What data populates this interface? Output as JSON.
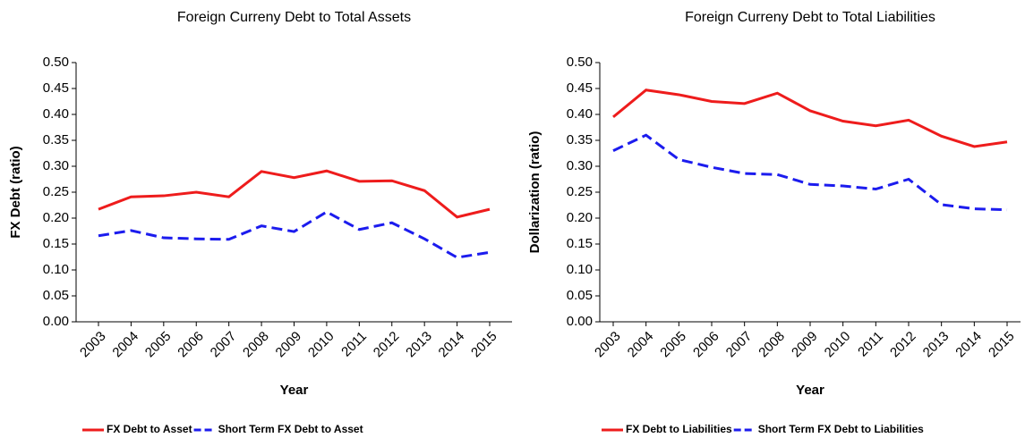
{
  "chart_data": [
    {
      "type": "line",
      "title": "Foreign Curreny Debt to Total Assets",
      "xlabel": "Year",
      "ylabel": "FX Debt (ratio)",
      "categories": [
        "2003",
        "2004",
        "2005",
        "2006",
        "2007",
        "2008",
        "2009",
        "2010",
        "2011",
        "2012",
        "2013",
        "2014",
        "2015"
      ],
      "series": [
        {
          "name": "FX Debt to Asset",
          "color": "#ee1c1c",
          "dash": false,
          "values": [
            0.217,
            0.241,
            0.243,
            0.25,
            0.241,
            0.29,
            0.278,
            0.291,
            0.271,
            0.272,
            0.253,
            0.202,
            0.217
          ]
        },
        {
          "name": "Short Term FX Debt to Asset",
          "color": "#1c1cee",
          "dash": true,
          "values": [
            0.166,
            0.176,
            0.162,
            0.16,
            0.159,
            0.185,
            0.174,
            0.212,
            0.178,
            0.191,
            0.16,
            0.124,
            0.134
          ]
        }
      ],
      "ylim": [
        0,
        0.5
      ],
      "yticks": [
        {
          "value": 0,
          "label": "0.00"
        },
        {
          "value": 0.05,
          "label": "0.05"
        },
        {
          "value": 0.1,
          "label": "0.10"
        },
        {
          "value": 0.15,
          "label": "0.15"
        },
        {
          "value": 0.2,
          "label": "0.20"
        },
        {
          "value": 0.25,
          "label": "0.25"
        },
        {
          "value": 0.3,
          "label": "0.30"
        },
        {
          "value": 0.35,
          "label": "0.35"
        },
        {
          "value": 0.4,
          "label": "0.40"
        },
        {
          "value": 0.45,
          "label": "0.45"
        },
        {
          "value": 0.5,
          "label": "0.50"
        }
      ],
      "grid": false,
      "legend": "bottom"
    },
    {
      "type": "line",
      "title": "Foreign Curreny Debt to Total Liabilities",
      "xlabel": "Year",
      "ylabel": "Dollarization (ratio)",
      "categories": [
        "2003",
        "2004",
        "2005",
        "2006",
        "2007",
        "2008",
        "2009",
        "2010",
        "2011",
        "2012",
        "2013",
        "2014",
        "2015"
      ],
      "series": [
        {
          "name": "FX Debt to Liabilities",
          "color": "#ee1c1c",
          "dash": false,
          "values": [
            0.395,
            0.447,
            0.438,
            0.425,
            0.421,
            0.441,
            0.407,
            0.387,
            0.378,
            0.389,
            0.358,
            0.338,
            0.347
          ]
        },
        {
          "name": "Short Term FX Debt to Liabilities",
          "color": "#1c1cee",
          "dash": true,
          "values": [
            0.33,
            0.36,
            0.313,
            0.298,
            0.286,
            0.284,
            0.265,
            0.262,
            0.256,
            0.275,
            0.226,
            0.218,
            0.216
          ]
        }
      ],
      "ylim": [
        0,
        0.5
      ],
      "yticks": [
        {
          "value": 0,
          "label": "0.00"
        },
        {
          "value": 0.05,
          "label": "0.05"
        },
        {
          "value": 0.1,
          "label": "0.10"
        },
        {
          "value": 0.15,
          "label": "0.15"
        },
        {
          "value": 0.2,
          "label": "0.20"
        },
        {
          "value": 0.25,
          "label": "0.25"
        },
        {
          "value": 0.3,
          "label": "0.30"
        },
        {
          "value": 0.35,
          "label": "0.35"
        },
        {
          "value": 0.4,
          "label": "0.40"
        },
        {
          "value": 0.45,
          "label": "0.45"
        },
        {
          "value": 0.5,
          "label": "0.50"
        }
      ],
      "grid": false,
      "legend": "bottom"
    }
  ]
}
